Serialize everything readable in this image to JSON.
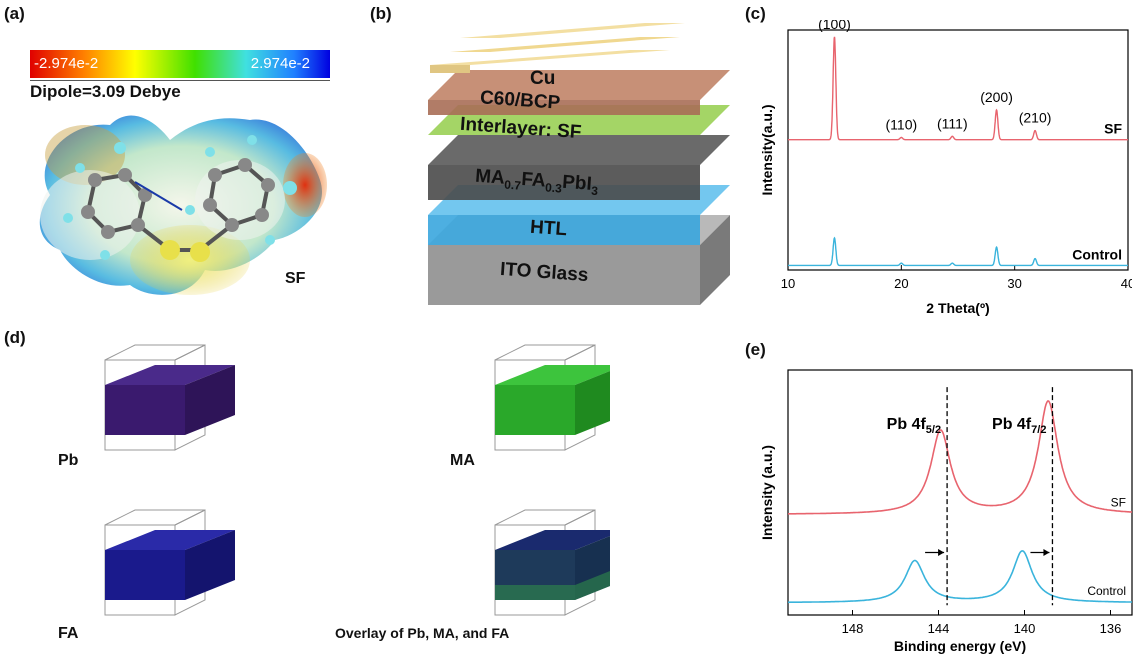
{
  "panels": {
    "a": "(a)",
    "b": "(b)",
    "c": "(c)",
    "d": "(d)",
    "e": "(e)"
  },
  "panel_a": {
    "colorbar_min": "-2.974e-2",
    "colorbar_max": "2.974e-2",
    "dipole": "Dipole=3.09 Debye",
    "label": "SF"
  },
  "panel_b": {
    "layers": [
      {
        "key": "cu",
        "text": "Cu",
        "color": "#f3dfa2"
      },
      {
        "key": "c60",
        "text": "C60/BCP",
        "color": "#c48a70"
      },
      {
        "key": "interlayer",
        "text": "Interlayer: SF",
        "color": "#8fc74d"
      },
      {
        "key": "perovskite",
        "text_parts": [
          "MA",
          "0.7",
          "FA",
          "0.3",
          "PbI",
          "3"
        ],
        "color": "#4a4a4a"
      },
      {
        "key": "htl",
        "text": "HTL",
        "color": "#4fb3e6"
      },
      {
        "key": "ito",
        "text": "ITO Glass",
        "color": "#9a9a9a"
      }
    ]
  },
  "panel_d": {
    "labels": [
      "Pb",
      "MA",
      "FA",
      "Overlay of Pb, MA, and FA"
    ],
    "colors": {
      "pb": "#3a1a6e",
      "ma": "#2aa82a",
      "fa": "#1a1a8c",
      "overlay": "#1e3a5a"
    }
  },
  "chart_data": [
    {
      "type": "line",
      "panel": "c",
      "xlabel": "2 Theta(º)",
      "ylabel": "Intensity(a.u.)",
      "xlim": [
        10,
        40
      ],
      "xticks": [
        "10",
        "20",
        "30",
        "40"
      ],
      "peaks_2theta": [
        14.1,
        20.0,
        24.5,
        28.4,
        31.8
      ],
      "peak_labels": [
        "(100)",
        "(110)",
        "(111)",
        "(200)",
        "(210)"
      ],
      "series": [
        {
          "name": "SF",
          "color": "#e8646e",
          "baseline": 0.55,
          "peak_heights": [
            0.45,
            0.01,
            0.015,
            0.13,
            0.04
          ]
        },
        {
          "name": "Control",
          "color": "#3ab4dc",
          "baseline": 0.0,
          "peak_heights": [
            0.12,
            0.01,
            0.01,
            0.08,
            0.03
          ]
        }
      ],
      "grid": false
    },
    {
      "type": "line",
      "panel": "e",
      "xlabel": "Binding energy (eV)",
      "ylabel": "Intensity (a.u.)",
      "xlim": [
        151,
        135
      ],
      "xticks": [
        "148",
        "144",
        "140",
        "136"
      ],
      "annotations": [
        {
          "text_main": "Pb 4f",
          "text_sub": "5/2",
          "x": 143.6
        },
        {
          "text_main": "Pb 4f",
          "text_sub": "7/2",
          "x": 138.7
        }
      ],
      "series": [
        {
          "name": "SF",
          "color": "#e8646e",
          "baseline": 0.36,
          "peaks": [
            143.9,
            138.9
          ],
          "heights": [
            0.34,
            0.46
          ],
          "width": 0.55
        },
        {
          "name": "Control",
          "color": "#3ab4dc",
          "baseline": 0.0,
          "peaks": [
            145.1,
            140.1
          ],
          "heights": [
            0.17,
            0.21
          ],
          "width": 0.55
        }
      ],
      "shift_arrows": true,
      "grid": false
    }
  ]
}
